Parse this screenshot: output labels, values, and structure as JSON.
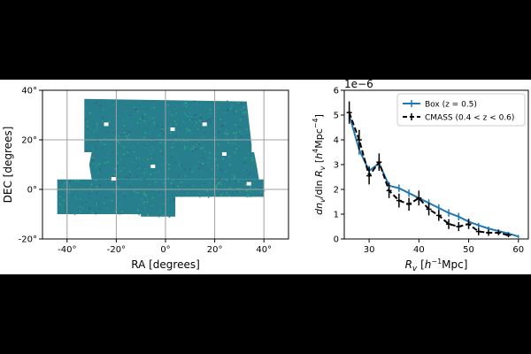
{
  "chart_data": [
    {
      "type": "heatmap",
      "xlabel": "RA [degrees]",
      "ylabel": "DEC [degrees]",
      "xlim": [
        -50,
        50
      ],
      "ylim": [
        -20,
        40
      ],
      "xticks": [
        -40,
        -20,
        0,
        20,
        40
      ],
      "xtick_labels": [
        "-40°",
        "-20°",
        "0°",
        "20°",
        "40°"
      ],
      "yticks": [
        -20,
        0,
        20,
        40
      ],
      "ytick_labels": [
        "-20°",
        "0°",
        "20°",
        "40°"
      ],
      "grid": true,
      "colors": {
        "fill": "#277f8e",
        "speckle": [
          "#2a9d8f",
          "#3b528b",
          "#21918c",
          "#35b779"
        ],
        "grid": "#a0a0a0"
      },
      "footprint": {
        "region_upper": {
          "ra": [
            -33,
            33
          ],
          "dec": [
            15,
            37
          ]
        },
        "region_lower": {
          "ra": [
            -44,
            40
          ],
          "dec": [
            -10,
            4
          ]
        }
      }
    },
    {
      "type": "line",
      "xlabel": "R_v [h^-1 Mpc]",
      "ylabel": "dn_v/dln R_v [h^4 Mpc^-4]",
      "offset_text": "1e−6",
      "xlim": [
        25,
        62
      ],
      "ylim": [
        0,
        6
      ],
      "xticks": [
        30,
        40,
        50,
        60
      ],
      "yticks": [
        0,
        1,
        2,
        3,
        4,
        5,
        6
      ],
      "legend_position": "upper right",
      "series": [
        {
          "name": "Box (z = 0.5)",
          "style": "solid",
          "color": "#1f77b4",
          "x": [
            26,
            28,
            30,
            32,
            34,
            36,
            38,
            40,
            42,
            44,
            46,
            48,
            50,
            52,
            54,
            56,
            58,
            60
          ],
          "y": [
            5.0,
            3.6,
            2.75,
            3.05,
            2.15,
            2.05,
            1.85,
            1.65,
            1.45,
            1.25,
            1.05,
            0.9,
            0.7,
            0.55,
            0.42,
            0.32,
            0.22,
            0.1
          ],
          "err": [
            0.2,
            0.2,
            0.2,
            0.2,
            0.15,
            0.15,
            0.15,
            0.15,
            0.15,
            0.15,
            0.15,
            0.15,
            0.12,
            0.1,
            0.08,
            0.08,
            0.07,
            0.06
          ]
        },
        {
          "name": "CMASS (0.4 < z < 0.6)",
          "style": "dashed",
          "color": "#000000",
          "x": [
            26,
            28,
            30,
            32,
            34,
            36,
            38,
            40,
            42,
            44,
            46,
            48,
            50,
            52,
            54,
            56,
            58
          ],
          "y": [
            5.1,
            4.0,
            2.55,
            3.1,
            1.95,
            1.55,
            1.4,
            1.65,
            1.2,
            0.95,
            0.6,
            0.5,
            0.6,
            0.3,
            0.25,
            0.25,
            0.15
          ],
          "err": [
            0.45,
            0.4,
            0.35,
            0.35,
            0.3,
            0.28,
            0.26,
            0.3,
            0.25,
            0.22,
            0.2,
            0.18,
            0.2,
            0.15,
            0.12,
            0.1,
            0.08
          ]
        }
      ]
    }
  ]
}
